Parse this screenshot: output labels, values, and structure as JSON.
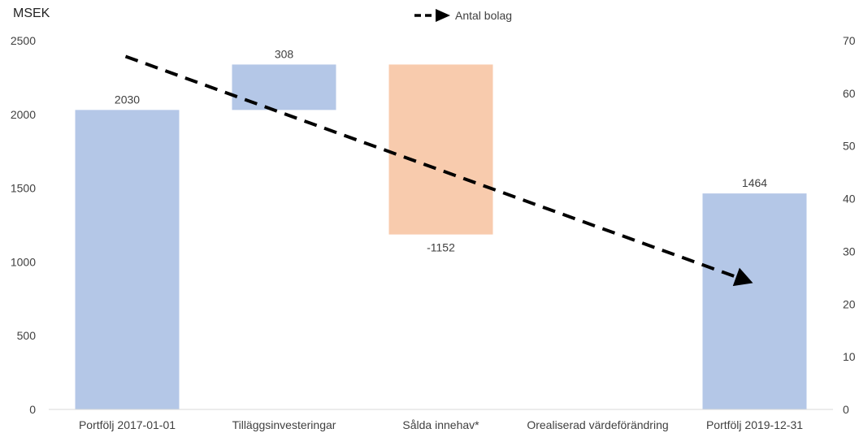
{
  "chart_data": {
    "type": "waterfall",
    "ylabel": "MSEK",
    "categories": [
      "Portfölj 2017-01-01",
      "Tilläggsinvesteringar",
      "Sålda innehav*",
      "Orealiserad värdeförändring",
      "Portfölj 2019-12-31"
    ],
    "bars": [
      {
        "category": "Portfölj 2017-01-01",
        "base": 0,
        "value": 2030,
        "label": "2030",
        "kind": "total",
        "color": "#b4c7e7"
      },
      {
        "category": "Tilläggsinvesteringar",
        "base": 2030,
        "value": 308,
        "label": "308",
        "kind": "increase",
        "color": "#b4c7e7"
      },
      {
        "category": "Sålda innehav*",
        "base": 2338,
        "value": -1152,
        "label": "-1152",
        "kind": "decrease",
        "color": "#f8cbad"
      },
      {
        "category": "Orealiserad värdeförändring",
        "base": 1186,
        "value": 0,
        "label": "",
        "kind": "change",
        "color": "#b4c7e7"
      },
      {
        "category": "Portfölj 2019-12-31",
        "base": 0,
        "value": 1464,
        "label": "1464",
        "kind": "total",
        "color": "#b4c7e7"
      }
    ],
    "ylim": [
      0,
      2500
    ],
    "yticks": [
      "0",
      "500",
      "1000",
      "1500",
      "2000",
      "2500"
    ],
    "y2lim": [
      0,
      70
    ],
    "y2ticks": [
      "0",
      "10",
      "20",
      "30",
      "40",
      "50",
      "60",
      "70"
    ],
    "line_series": {
      "name": "Antal bolag",
      "style": "dashed-arrow",
      "color": "#000000",
      "points": [
        {
          "x": "Portfölj 2017-01-01",
          "y": 67
        },
        {
          "x": "Portfölj 2019-12-31",
          "y": 24
        }
      ]
    },
    "legend_position": "top-center",
    "grid": false
  }
}
